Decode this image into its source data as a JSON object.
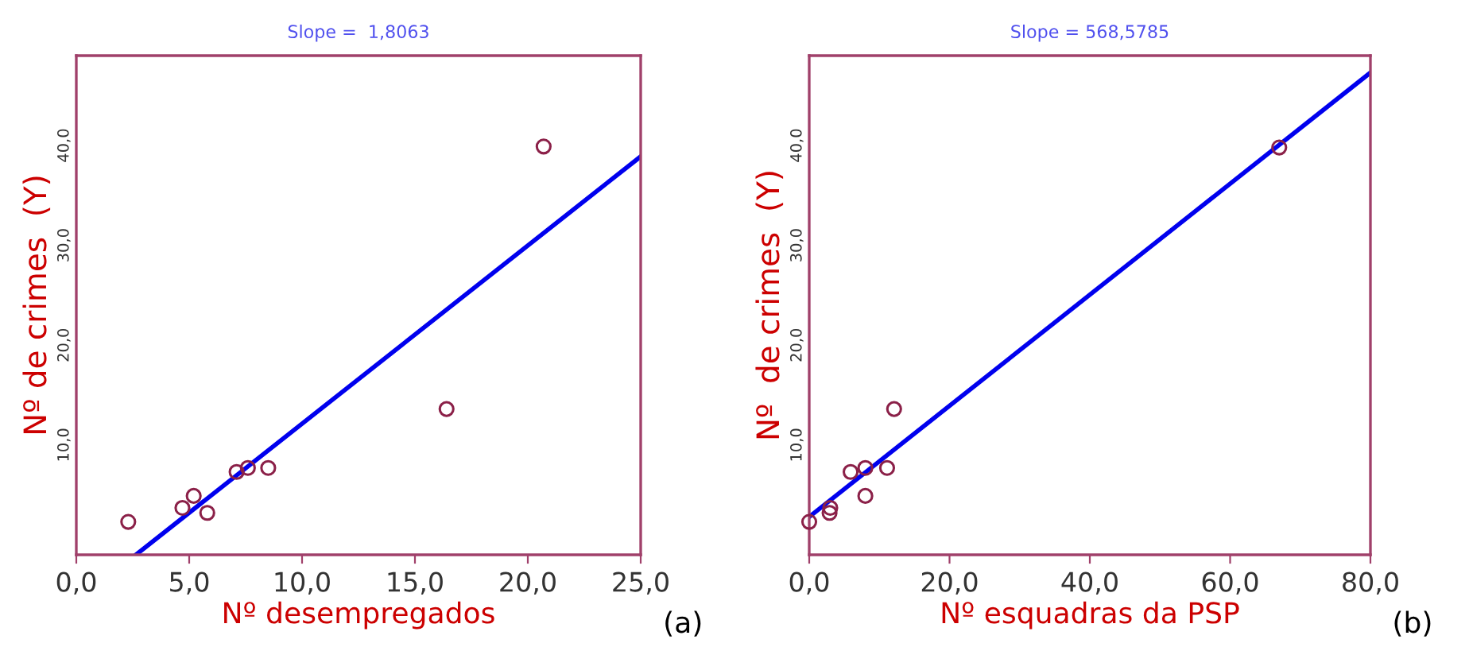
{
  "chart_data": [
    {
      "type": "scatter",
      "title": "Slope =  1,8063",
      "xlabel": "Nº desempregados",
      "ylabel": "Nº de crimes  (Y)",
      "annotations": [
        "(a)"
      ],
      "xlim": [
        0,
        25
      ],
      "ylim": [
        -1,
        49
      ],
      "xticks": [
        {
          "value": 0,
          "label": "0,0"
        },
        {
          "value": 5,
          "label": "5,0"
        },
        {
          "value": 10,
          "label": "10,0"
        },
        {
          "value": 15,
          "label": "15,0"
        },
        {
          "value": 20,
          "label": "20,0"
        },
        {
          "value": 25,
          "label": "25,0"
        }
      ],
      "yticks": [
        {
          "value": 10,
          "label": "10,0"
        },
        {
          "value": 20,
          "label": "20,0"
        },
        {
          "value": 30,
          "label": "30,0"
        },
        {
          "value": 40,
          "label": "40,0"
        }
      ],
      "grid": false,
      "series": [
        {
          "marker": "circle",
          "color": "#8b2048",
          "x": [
            2.3,
            4.7,
            5.2,
            5.8,
            7.1,
            7.6,
            8.5,
            16.4,
            20.7
          ],
          "values": [
            2.3,
            3.7,
            4.9,
            3.2,
            7.3,
            7.7,
            7.7,
            13.6,
            39.9
          ]
        },
        {
          "type": "line",
          "marker": "none",
          "color": "#0000ee",
          "x": [
            2.64,
            25
          ],
          "values": [
            -1,
            38.9
          ]
        }
      ]
    },
    {
      "type": "scatter",
      "title": "Slope = 568,5785",
      "xlabel": "Nº esquadras da PSP",
      "ylabel": "Nº  de crimes  (Y)",
      "annotations": [
        "(b)"
      ],
      "xlim": [
        0,
        80
      ],
      "ylim": [
        -1,
        49
      ],
      "xticks": [
        {
          "value": 0,
          "label": "0,0"
        },
        {
          "value": 20,
          "label": "20,0"
        },
        {
          "value": 40,
          "label": "40,0"
        },
        {
          "value": 60,
          "label": "60,0"
        },
        {
          "value": 80,
          "label": "80,0"
        }
      ],
      "yticks": [
        {
          "value": 10,
          "label": "10,0"
        },
        {
          "value": 20,
          "label": "20,0"
        },
        {
          "value": 30,
          "label": "30,0"
        },
        {
          "value": 40,
          "label": "40,0"
        }
      ],
      "grid": false,
      "series": [
        {
          "marker": "circle",
          "color": "#8b2048",
          "x": [
            0,
            2.9,
            3.0,
            5.9,
            8.0,
            8.0,
            11.1,
            12.1,
            67.0
          ],
          "values": [
            2.3,
            3.2,
            3.7,
            7.3,
            7.7,
            4.9,
            7.7,
            13.6,
            39.8
          ]
        },
        {
          "type": "line",
          "marker": "none",
          "color": "#0000ee",
          "x": [
            0,
            80
          ],
          "values": [
            2.8,
            47.3
          ]
        }
      ]
    }
  ]
}
